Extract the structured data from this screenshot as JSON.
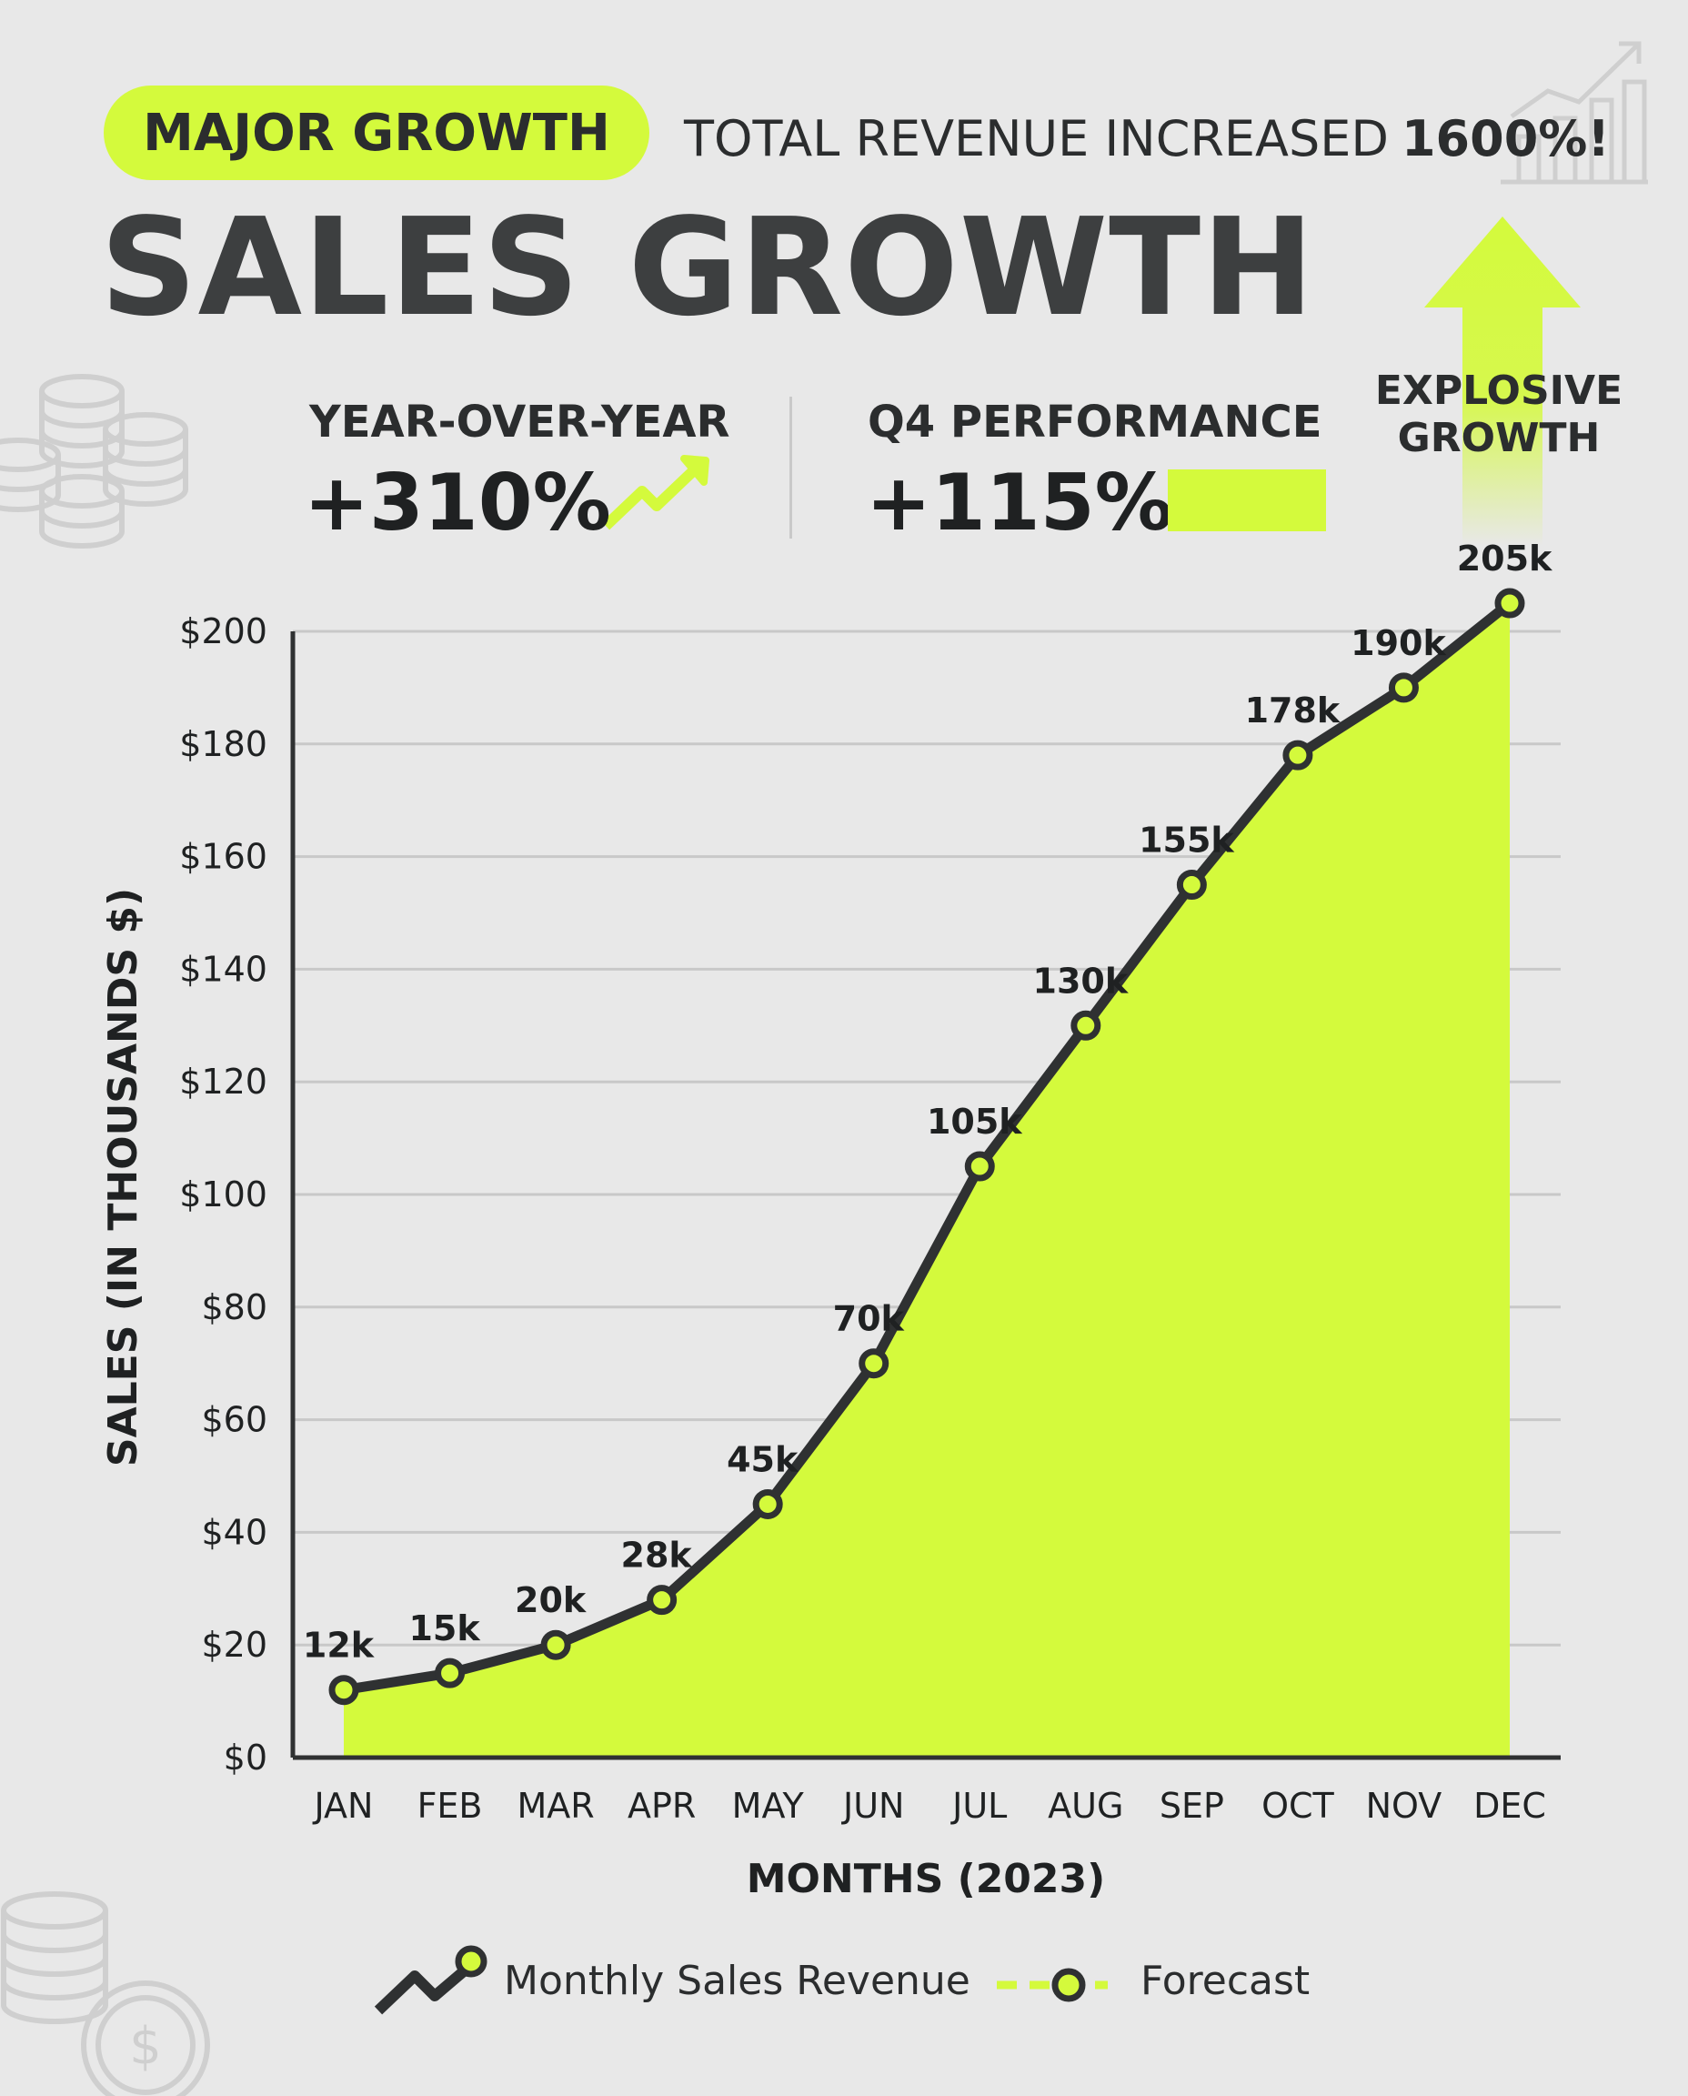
{
  "header": {
    "badge": "MAJOR GROWTH",
    "headline_text": "TOTAL REVENUE INCREASED",
    "headline_value": "1600%!",
    "title": "SALES GROWTH"
  },
  "stats": {
    "yoy_label": "YEAR-OVER-YEAR",
    "yoy_value": "+310%",
    "q4_label": "Q4 PERFORMANCE",
    "q4_value": "+115%",
    "explosive_line1": "EXPLOSIVE",
    "explosive_line2": "GROWTH"
  },
  "legend": {
    "series_label": "Monthly Sales Revenue",
    "forecast_label": "Forecast"
  },
  "colors": {
    "accent": "#d4fa3c",
    "dark": "#2f3132",
    "background": "#e8e8e8"
  },
  "chart_data": {
    "type": "area",
    "title": "SALES GROWTH",
    "xlabel": "MONTHS (2023)",
    "ylabel": "SALES (IN THOUSANDS $)",
    "categories": [
      "JAN",
      "FEB",
      "MAR",
      "APR",
      "MAY",
      "JUN",
      "JUL",
      "AUG",
      "SEP",
      "OCT",
      "NOV",
      "DEC"
    ],
    "series": [
      {
        "name": "Monthly Sales Revenue",
        "values": [
          12,
          15,
          20,
          28,
          45,
          70,
          105,
          130,
          155,
          178,
          190,
          205
        ],
        "labels": [
          "12k",
          "15k",
          "20k",
          "28k",
          "45k",
          "70k",
          "105k",
          "130k",
          "155k",
          "178k",
          "190k",
          "205k"
        ]
      }
    ],
    "ylim": [
      0,
      200
    ],
    "yticks": [
      0,
      20,
      40,
      60,
      80,
      100,
      120,
      140,
      160,
      180,
      200
    ],
    "ytick_labels": [
      "$0",
      "$20",
      "$40",
      "$60",
      "$80",
      "$100",
      "$120",
      "$140",
      "$160",
      "$180",
      "$200"
    ],
    "grid": true
  }
}
